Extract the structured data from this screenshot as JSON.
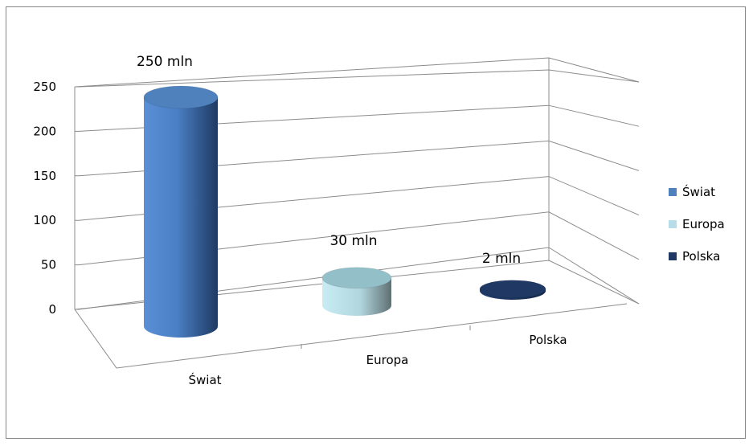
{
  "chart_data": {
    "type": "bar",
    "style": "3d-cylinder",
    "categories": [
      "Świat",
      "Europa",
      "Polska"
    ],
    "values": [
      250,
      30,
      2
    ],
    "data_labels": [
      "250 mln",
      "30 mln",
      "2 mln"
    ],
    "ylim": [
      0,
      250
    ],
    "yticks": [
      "0",
      "50",
      "100",
      "150",
      "200",
      "250"
    ],
    "grid": true,
    "legend_position": "right",
    "legend": [
      {
        "name": "Świat",
        "color": "#4f81bd"
      },
      {
        "name": "Europa",
        "color": "#b7dee8"
      },
      {
        "name": "Polska",
        "color": "#1f3864"
      }
    ],
    "title": "",
    "xlabel": "",
    "ylabel": ""
  }
}
